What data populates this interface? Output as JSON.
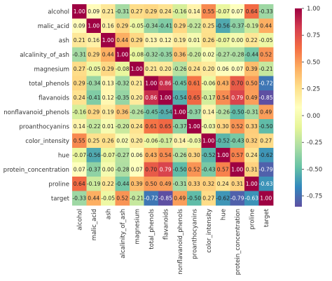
{
  "chart_data": {
    "type": "heatmap",
    "title": "",
    "xlabel": "",
    "ylabel": "",
    "labels": [
      "alcohol",
      "malic_acid",
      "ash",
      "alcalinity_of_ash",
      "magnesium",
      "total_phenols",
      "flavanoids",
      "nonflavanoid_phenols",
      "proanthocyanins",
      "color_intensity",
      "hue",
      "protein_concentration",
      "proline",
      "target"
    ],
    "matrix": [
      [
        1.0,
        0.09,
        0.21,
        -0.31,
        0.27,
        0.29,
        0.24,
        -0.16,
        0.14,
        0.55,
        -0.07,
        0.07,
        0.64,
        -0.33
      ],
      [
        0.09,
        1.0,
        0.16,
        0.29,
        -0.05,
        -0.34,
        -0.41,
        0.29,
        -0.22,
        0.25,
        -0.56,
        -0.37,
        -0.19,
        0.44
      ],
      [
        0.21,
        0.16,
        1.0,
        0.44,
        0.29,
        0.13,
        0.12,
        0.19,
        0.01,
        0.26,
        -0.07,
        0.0,
        0.22,
        -0.05
      ],
      [
        -0.31,
        0.29,
        0.44,
        1.0,
        -0.08,
        -0.32,
        -0.35,
        0.36,
        -0.2,
        0.02,
        -0.27,
        -0.28,
        -0.44,
        0.52
      ],
      [
        0.27,
        -0.05,
        0.29,
        -0.08,
        1.0,
        0.21,
        0.2,
        -0.26,
        0.24,
        0.2,
        0.06,
        0.07,
        0.39,
        -0.21
      ],
      [
        0.29,
        -0.34,
        0.13,
        -0.32,
        0.21,
        1.0,
        0.86,
        -0.45,
        0.61,
        -0.06,
        0.43,
        0.7,
        0.5,
        -0.72
      ],
      [
        0.24,
        -0.41,
        0.12,
        -0.35,
        0.2,
        0.86,
        1.0,
        -0.54,
        0.65,
        -0.17,
        0.54,
        0.79,
        0.49,
        -0.85
      ],
      [
        -0.16,
        0.29,
        0.19,
        0.36,
        -0.26,
        -0.45,
        -0.54,
        1.0,
        -0.37,
        0.14,
        -0.26,
        -0.5,
        -0.31,
        0.49
      ],
      [
        0.14,
        -0.22,
        0.01,
        -0.2,
        0.24,
        0.61,
        0.65,
        -0.37,
        1.0,
        -0.03,
        0.3,
        0.52,
        0.33,
        -0.5
      ],
      [
        0.55,
        0.25,
        0.26,
        0.02,
        0.2,
        -0.06,
        -0.17,
        0.14,
        -0.03,
        1.0,
        -0.52,
        -0.43,
        0.32,
        0.27
      ],
      [
        -0.07,
        -0.56,
        -0.07,
        -0.27,
        0.06,
        0.43,
        0.54,
        -0.26,
        0.3,
        -0.52,
        1.0,
        0.57,
        0.24,
        -0.62
      ],
      [
        0.07,
        -0.37,
        0.0,
        -0.28,
        0.07,
        0.7,
        0.79,
        -0.5,
        0.52,
        -0.43,
        0.57,
        1.0,
        0.31,
        -0.79
      ],
      [
        0.64,
        -0.19,
        0.22,
        -0.44,
        0.39,
        0.5,
        0.49,
        -0.31,
        0.33,
        0.32,
        0.24,
        0.31,
        1.0,
        -0.63
      ],
      [
        -0.33,
        0.44,
        -0.05,
        0.52,
        -0.21,
        -0.72,
        -0.85,
        0.49,
        -0.5,
        0.27,
        -0.62,
        -0.79,
        -0.63,
        1.0
      ]
    ],
    "value_format": "2 decimals",
    "colormap": "Spectral_r",
    "colormap_stops": [
      "#5e4fa2",
      "#3288bd",
      "#66c2a5",
      "#abdda4",
      "#e6f598",
      "#ffffbf",
      "#fee08b",
      "#fdae61",
      "#f46d43",
      "#d53e4f",
      "#9e0142"
    ],
    "vmin": -0.85,
    "vmax": 1.0,
    "grid": false,
    "legend_placement": "right",
    "colorbar_ticks": [
      "1.00",
      "0.75",
      "0.50",
      "0.25",
      "0.00",
      "-0.25",
      "-0.50",
      "-0.75"
    ],
    "colorbar_tick_values": [
      1.0,
      0.75,
      0.5,
      0.25,
      0.0,
      -0.25,
      -0.5,
      -0.75
    ]
  }
}
